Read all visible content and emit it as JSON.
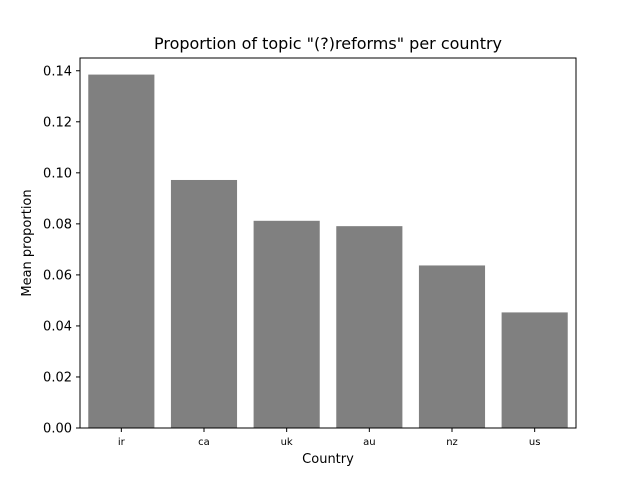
{
  "chart_data": {
    "type": "bar",
    "title": "Proportion of topic \"(?)reforms\" per country",
    "xlabel": "Country",
    "ylabel": "Mean proportion",
    "categories": [
      "ir",
      "ca",
      "uk",
      "au",
      "nz",
      "us"
    ],
    "values": [
      0.1385,
      0.0972,
      0.0812,
      0.0791,
      0.0637,
      0.0453
    ],
    "ylim": [
      0,
      0.145
    ],
    "yticks": [
      "0.00",
      "0.02",
      "0.04",
      "0.06",
      "0.08",
      "0.10",
      "0.12",
      "0.14"
    ],
    "bar_color": "#808080",
    "grid": false
  }
}
